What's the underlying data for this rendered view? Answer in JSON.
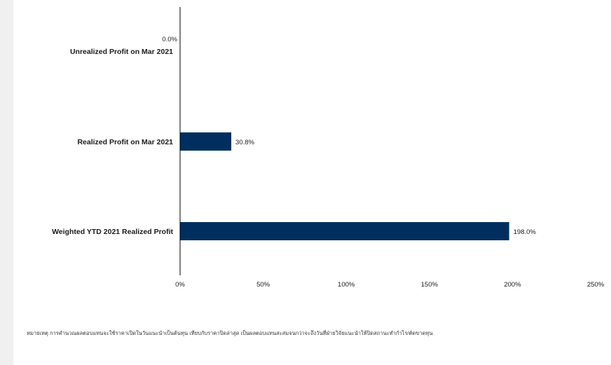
{
  "chart_data": {
    "type": "bar",
    "orientation": "horizontal",
    "categories": [
      "Unrealized Profit on Mar 2021",
      "Realized Profit on Mar 2021",
      "Weighted YTD 2021  Realized Profit"
    ],
    "values": [
      0.0,
      30.8,
      198.0
    ],
    "value_labels": [
      "0.0%",
      "30.8%",
      "198.0%"
    ],
    "xlim": [
      0,
      250
    ],
    "xticks": [
      0,
      50,
      100,
      150,
      200,
      250
    ],
    "xtick_labels": [
      "0%",
      "50%",
      "100%",
      "150%",
      "200%",
      "250%"
    ],
    "bar_color": "#002f5f",
    "grid": false,
    "legend": "none"
  },
  "footnote": "หมายเหตุ การคำนวณผลตอบแทนจะใช้ราคาเปิดในวันแนะนำเป็นต้นทุน เทียบกับราคาปิดล่าสุด เป็นผลตอบแทนสะสมจนกว่าจะถึงวันที่ฝ่ายวิจัยแนะนำให้ปิดสถานะทำกำไร/ตัดขาดทุน"
}
